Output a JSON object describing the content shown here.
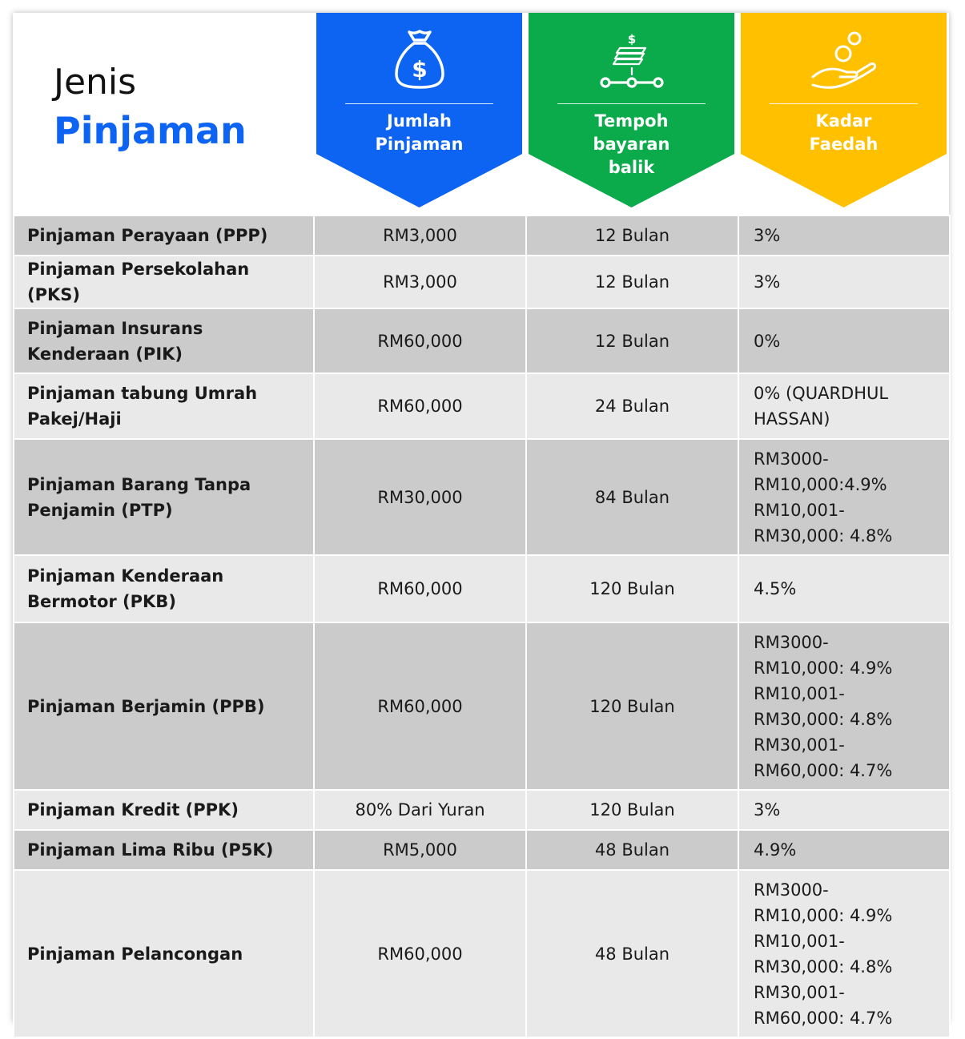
{
  "header": {
    "title_line1": "Jenis",
    "title_line2": "Pinjaman",
    "columns": [
      {
        "label": "Jumlah\nPinjaman",
        "color": "#0d63f2",
        "icon": "money-bag-icon"
      },
      {
        "label": "Tempoh\nbayaran\nbalik",
        "color": "#0bab4c",
        "icon": "cash-timeline-icon"
      },
      {
        "label": "Kadar\nFaedah",
        "color": "#ffc000",
        "icon": "hand-coin-icon"
      }
    ]
  },
  "colors": {
    "row_dark": "#cbcbcb",
    "row_light": "#e9e9e9",
    "title_accent": "#0d63f2"
  },
  "rows": [
    {
      "name": "Pinjaman Perayaan (PPP)",
      "amount": "RM3,000",
      "term": "12 Bulan",
      "rate": "3%"
    },
    {
      "name": "Pinjaman Persekolahan (PKS)",
      "amount": "RM3,000",
      "term": "12 Bulan",
      "rate": "3%"
    },
    {
      "name": "Pinjaman Insurans Kenderaan (PIK)",
      "amount": "RM60,000",
      "term": "12 Bulan",
      "rate": "0%"
    },
    {
      "name": "Pinjaman tabung Umrah Pakej/Haji",
      "amount": "RM60,000",
      "term": "24 Bulan",
      "rate": "0% (QUARDHUL HASSAN)"
    },
    {
      "name": "Pinjaman Barang Tanpa Penjamin (PTP)",
      "amount": "RM30,000",
      "term": "84 Bulan",
      "rate": "RM3000-\nRM10,000:4.9%\nRM10,001-\nRM30,000: 4.8%"
    },
    {
      "name": "Pinjaman Kenderaan Bermotor (PKB)",
      "amount": "RM60,000",
      "term": "120 Bulan",
      "rate": "4.5%"
    },
    {
      "name": "Pinjaman Berjamin (PPB)",
      "amount": "RM60,000",
      "term": "120 Bulan",
      "rate": "RM3000-\nRM10,000: 4.9%\nRM10,001-\nRM30,000: 4.8%\nRM30,001-\nRM60,000: 4.7%"
    },
    {
      "name": "Pinjaman Kredit (PPK)",
      "amount": "80% Dari Yuran",
      "term": "120 Bulan",
      "rate": "3%"
    },
    {
      "name": "Pinjaman Lima Ribu (P5K)",
      "amount": "RM5,000",
      "term": "48 Bulan",
      "rate": "4.9%"
    },
    {
      "name": "Pinjaman Pelancongan",
      "amount": "RM60,000",
      "term": "48 Bulan",
      "rate": "RM3000-\nRM10,000: 4.9%\nRM10,001-\nRM30,000: 4.8%\nRM30,001-\nRM60,000: 4.7%"
    }
  ]
}
